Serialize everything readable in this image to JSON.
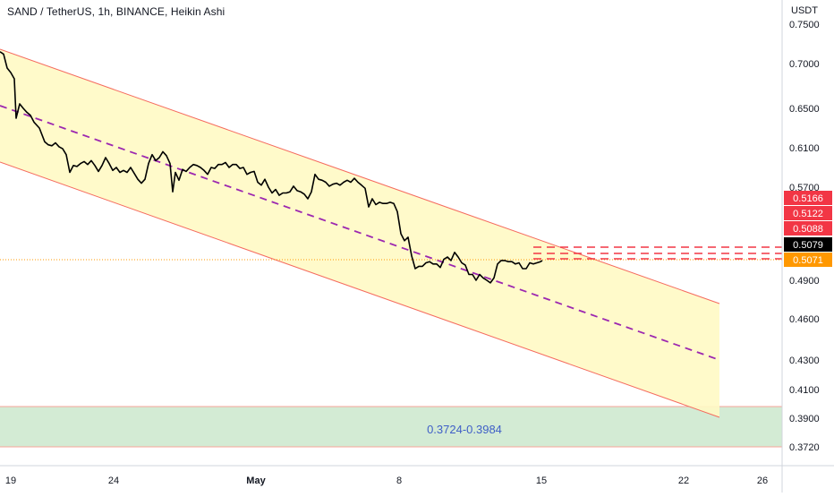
{
  "chart_data": {
    "type": "line",
    "title": "SAND / TetherUS, 1h, BINANCE, Heikin Ashi",
    "currency": "USDT",
    "x_ticks": [
      "19",
      "24",
      "May",
      "8",
      "15",
      "22",
      "26"
    ],
    "y_ticks": [
      "0.7500",
      "0.7000",
      "0.6500",
      "0.6100",
      "0.5700",
      "0.4900",
      "0.4600",
      "0.4300",
      "0.4100",
      "0.3900",
      "0.3720"
    ],
    "price_tags": [
      {
        "label": "0.5166",
        "color": "#f23645"
      },
      {
        "label": "0.5122",
        "color": "#f23645"
      },
      {
        "label": "0.5088",
        "color": "#f23645"
      },
      {
        "label": "0.5079",
        "color": "#000000"
      },
      {
        "label": "0.5071",
        "color": "#ff9800"
      }
    ],
    "zone_label": "0.3724-0.3984",
    "series": [
      {
        "values": [
          [
            0,
            0.715
          ],
          [
            4,
            0.712
          ],
          [
            8,
            0.695
          ],
          [
            12,
            0.69
          ],
          [
            16,
            0.683
          ],
          [
            18,
            0.64
          ],
          [
            22,
            0.655
          ],
          [
            26,
            0.65
          ],
          [
            30,
            0.646
          ],
          [
            34,
            0.643
          ],
          [
            38,
            0.636
          ],
          [
            44,
            0.63
          ],
          [
            50,
            0.616
          ],
          [
            54,
            0.613
          ],
          [
            58,
            0.612
          ],
          [
            62,
            0.615
          ],
          [
            66,
            0.611
          ],
          [
            70,
            0.609
          ],
          [
            74,
            0.603
          ],
          [
            78,
            0.585
          ],
          [
            82,
            0.592
          ],
          [
            86,
            0.591
          ],
          [
            90,
            0.594
          ],
          [
            94,
            0.596
          ],
          [
            98,
            0.593
          ],
          [
            102,
            0.597
          ],
          [
            106,
            0.592
          ],
          [
            110,
            0.586
          ],
          [
            114,
            0.592
          ],
          [
            118,
            0.6
          ],
          [
            122,
            0.594
          ],
          [
            126,
            0.587
          ],
          [
            130,
            0.59
          ],
          [
            134,
            0.585
          ],
          [
            138,
            0.587
          ],
          [
            142,
            0.585
          ],
          [
            146,
            0.59
          ],
          [
            150,
            0.584
          ],
          [
            154,
            0.578
          ],
          [
            158,
            0.574
          ],
          [
            162,
            0.578
          ],
          [
            166,
            0.594
          ],
          [
            170,
            0.603
          ],
          [
            174,
            0.597
          ],
          [
            178,
            0.6
          ],
          [
            182,
            0.606
          ],
          [
            186,
            0.602
          ],
          [
            190,
            0.594
          ],
          [
            193,
            0.566
          ],
          [
            196,
            0.585
          ],
          [
            200,
            0.577
          ],
          [
            204,
            0.588
          ],
          [
            208,
            0.586
          ],
          [
            212,
            0.59
          ],
          [
            216,
            0.593
          ],
          [
            220,
            0.592
          ],
          [
            224,
            0.59
          ],
          [
            228,
            0.587
          ],
          [
            232,
            0.583
          ],
          [
            236,
            0.59
          ],
          [
            240,
            0.589
          ],
          [
            244,
            0.593
          ],
          [
            248,
            0.593
          ],
          [
            252,
            0.595
          ],
          [
            256,
            0.59
          ],
          [
            260,
            0.593
          ],
          [
            264,
            0.593
          ],
          [
            268,
            0.589
          ],
          [
            272,
            0.59
          ],
          [
            276,
            0.583
          ],
          [
            280,
            0.585
          ],
          [
            284,
            0.586
          ],
          [
            288,
            0.575
          ],
          [
            292,
            0.572
          ],
          [
            296,
            0.578
          ],
          [
            300,
            0.57
          ],
          [
            304,
            0.565
          ],
          [
            308,
            0.568
          ],
          [
            312,
            0.563
          ],
          [
            316,
            0.565
          ],
          [
            320,
            0.565
          ],
          [
            324,
            0.566
          ],
          [
            328,
            0.571
          ],
          [
            332,
            0.567
          ],
          [
            336,
            0.566
          ],
          [
            340,
            0.564
          ],
          [
            344,
            0.56
          ],
          [
            348,
            0.566
          ],
          [
            352,
            0.583
          ],
          [
            356,
            0.578
          ],
          [
            360,
            0.577
          ],
          [
            364,
            0.575
          ],
          [
            368,
            0.571
          ],
          [
            372,
            0.573
          ],
          [
            376,
            0.574
          ],
          [
            380,
            0.572
          ],
          [
            384,
            0.575
          ],
          [
            388,
            0.577
          ],
          [
            392,
            0.575
          ],
          [
            396,
            0.579
          ],
          [
            400,
            0.575
          ],
          [
            404,
            0.572
          ],
          [
            408,
            0.569
          ],
          [
            412,
            0.553
          ],
          [
            416,
            0.56
          ],
          [
            420,
            0.555
          ],
          [
            424,
            0.557
          ],
          [
            428,
            0.556
          ],
          [
            432,
            0.556
          ],
          [
            436,
            0.557
          ],
          [
            440,
            0.556
          ],
          [
            444,
            0.549
          ],
          [
            448,
            0.53
          ],
          [
            452,
            0.524
          ],
          [
            456,
            0.527
          ],
          [
            460,
            0.511
          ],
          [
            464,
            0.5
          ],
          [
            468,
            0.502
          ],
          [
            472,
            0.502
          ],
          [
            476,
            0.505
          ],
          [
            480,
            0.506
          ],
          [
            484,
            0.504
          ],
          [
            488,
            0.504
          ],
          [
            492,
            0.501
          ],
          [
            496,
            0.508
          ],
          [
            500,
            0.51
          ],
          [
            504,
            0.507
          ],
          [
            508,
            0.514
          ],
          [
            512,
            0.51
          ],
          [
            516,
            0.505
          ],
          [
            520,
            0.503
          ],
          [
            524,
            0.495
          ],
          [
            528,
            0.495
          ],
          [
            532,
            0.49
          ],
          [
            536,
            0.495
          ],
          [
            540,
            0.492
          ],
          [
            544,
            0.49
          ],
          [
            548,
            0.488
          ],
          [
            552,
            0.492
          ],
          [
            556,
            0.504
          ],
          [
            560,
            0.507
          ],
          [
            564,
            0.507
          ],
          [
            568,
            0.506
          ],
          [
            572,
            0.506
          ],
          [
            576,
            0.504
          ],
          [
            580,
            0.505
          ],
          [
            584,
            0.5
          ],
          [
            588,
            0.5
          ],
          [
            592,
            0.505
          ],
          [
            596,
            0.504
          ],
          [
            600,
            0.505
          ],
          [
            604,
            0.506
          ],
          [
            606,
            0.507
          ]
        ]
      }
    ]
  }
}
